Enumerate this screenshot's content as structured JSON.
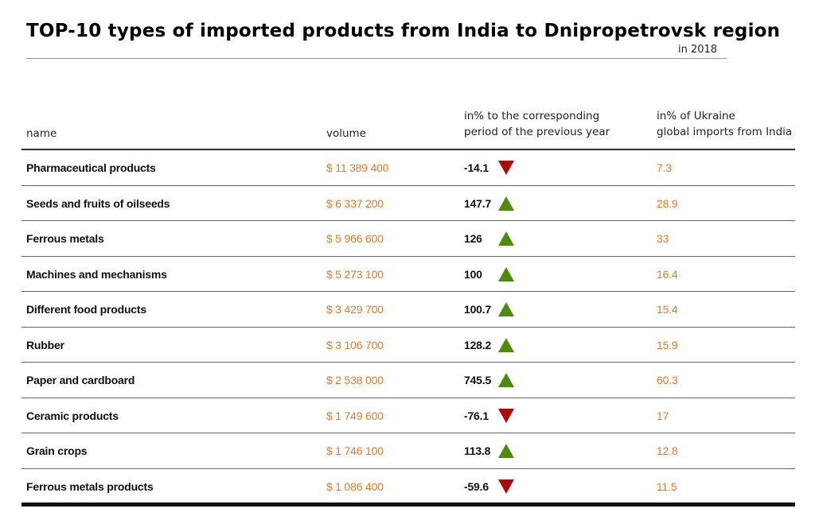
{
  "colors": {
    "accent": "#e07a2a",
    "up": "#4f8a10",
    "down": "#aa0a0a"
  },
  "chart_data": {
    "type": "table",
    "title": "TOP-10 types of imported products from India to Dnipropetrovsk region",
    "subtitle": "in 2018",
    "columns": {
      "name": "name",
      "volume": "volume",
      "change_line1": "in% to the corresponding",
      "change_line2": "period of the previous year",
      "share_line1": "in% of Ukraine",
      "share_line2": "global imports from India"
    },
    "rows": [
      {
        "name": "Pharmaceutical products",
        "volume": "$ 11 389 400",
        "change": "-14.1",
        "trend": "down",
        "share": "7.3"
      },
      {
        "name": "Seeds and fruits of oilseeds",
        "volume": "$ 6 337 200",
        "change": "147.7",
        "trend": "up",
        "share": "28.9"
      },
      {
        "name": "Ferrous metals",
        "volume": "$ 5 966 600",
        "change": "126",
        "trend": "up",
        "share": "33"
      },
      {
        "name": "Machines and mechanisms",
        "volume": "$  5 273 100",
        "change": "100",
        "trend": "up",
        "share": "16.4"
      },
      {
        "name": "Different food products",
        "volume": "$  3 429 700",
        "change": "100.7",
        "trend": "up",
        "share": "15.4"
      },
      {
        "name": "Rubber",
        "volume": "$ 3 106 700",
        "change": "128.2",
        "trend": "up",
        "share": "15.9"
      },
      {
        "name": "Paper and cardboard",
        "volume": "$ 2 538 000",
        "change": "745.5",
        "trend": "up",
        "share": "60.3"
      },
      {
        "name": "Ceramic products",
        "volume": "$ 1 749 600",
        "change": "-76.1",
        "trend": "down",
        "share": "17"
      },
      {
        "name": "Grain crops",
        "volume": "$  1 746 100",
        "change": "113.8",
        "trend": "up",
        "share": "12.8"
      },
      {
        "name": "Ferrous metals products",
        "volume": "$  1 086 400",
        "change": "-59.6",
        "trend": "down",
        "share": "11.5"
      }
    ]
  }
}
